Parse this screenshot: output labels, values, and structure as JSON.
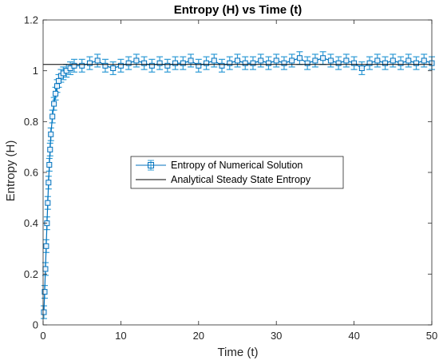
{
  "chart_data": {
    "type": "line",
    "title": "Entropy (H) vs Time (t)",
    "xlabel": "Time (t)",
    "ylabel": "Entropy (H)",
    "xlim": [
      0,
      50
    ],
    "ylim": [
      0,
      1.2
    ],
    "x_ticks": [
      "0",
      "10",
      "20",
      "30",
      "40",
      "50"
    ],
    "y_ticks": [
      "0",
      "0.2",
      "0.4",
      "0.6",
      "0.8",
      "1",
      "1.2"
    ],
    "x_tick_values": [
      0,
      10,
      20,
      30,
      40,
      50
    ],
    "y_tick_values": [
      0,
      0.2,
      0.4,
      0.6,
      0.8,
      1.0,
      1.2
    ],
    "grid": false,
    "legend_position": "center",
    "series": [
      {
        "name": "Entropy of Numerical Solution",
        "style": "errorbar-square-markers",
        "color": "#0072BD",
        "error_color": "#2E9BD6",
        "error": 0.025,
        "x": [
          0.1,
          0.2,
          0.3,
          0.4,
          0.5,
          0.6,
          0.7,
          0.8,
          0.9,
          1.0,
          1.2,
          1.4,
          1.6,
          1.8,
          2.0,
          2.3,
          2.6,
          3.0,
          3.5,
          4,
          5,
          6,
          7,
          8,
          9,
          10,
          11,
          12,
          13,
          14,
          15,
          16,
          17,
          18,
          19,
          20,
          21,
          22,
          23,
          24,
          25,
          26,
          27,
          28,
          29,
          30,
          31,
          32,
          33,
          34,
          35,
          36,
          37,
          38,
          39,
          40,
          41,
          42,
          43,
          44,
          45,
          46,
          47,
          48,
          49,
          50
        ],
        "y": [
          0.05,
          0.13,
          0.22,
          0.31,
          0.4,
          0.48,
          0.56,
          0.63,
          0.69,
          0.75,
          0.82,
          0.87,
          0.91,
          0.94,
          0.96,
          0.98,
          0.99,
          1.0,
          1.01,
          1.02,
          1.02,
          1.03,
          1.04,
          1.02,
          1.01,
          1.02,
          1.03,
          1.04,
          1.03,
          1.02,
          1.03,
          1.02,
          1.03,
          1.03,
          1.04,
          1.02,
          1.03,
          1.04,
          1.02,
          1.03,
          1.04,
          1.03,
          1.03,
          1.04,
          1.03,
          1.04,
          1.03,
          1.04,
          1.05,
          1.03,
          1.04,
          1.05,
          1.04,
          1.03,
          1.04,
          1.03,
          1.01,
          1.03,
          1.04,
          1.03,
          1.04,
          1.03,
          1.04,
          1.03,
          1.04,
          1.03
        ]
      },
      {
        "name": "Analytical Steady State Entropy",
        "style": "line",
        "color": "#000000",
        "x": [
          0,
          50
        ],
        "y": [
          1.025,
          1.025
        ]
      }
    ]
  }
}
